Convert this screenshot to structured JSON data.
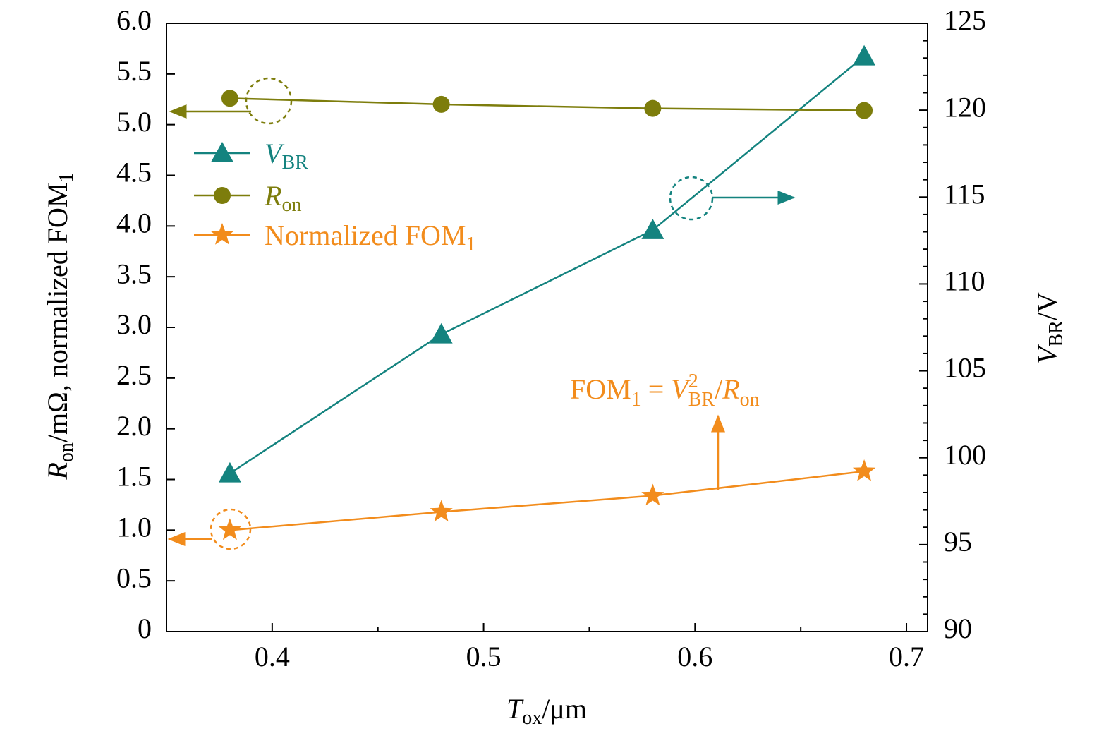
{
  "chart_data": {
    "type": "line",
    "xlabel": [
      "T",
      "ox",
      "/μm"
    ],
    "ylabel": [
      "R",
      "on",
      "/mΩ, normalized FOM",
      "1"
    ],
    "y2label": [
      "V",
      "BR",
      "/V"
    ],
    "annotation": [
      "FOM",
      "1",
      " = ",
      "V",
      "2",
      "BR",
      "/",
      "R",
      "on"
    ],
    "x": [
      0.38,
      0.48,
      0.58,
      0.68
    ],
    "xlim": [
      0.35,
      0.71
    ],
    "xticks": [
      0.4,
      0.5,
      0.6,
      0.7
    ],
    "xminor_ticks": [
      0.45,
      0.55,
      0.65
    ],
    "ylim": [
      0,
      6
    ],
    "yticks": [
      0,
      0.5,
      {
        "value": 1,
        "label": "1.0"
      },
      1.5,
      {
        "value": 2,
        "label": "2.0"
      },
      2.5,
      {
        "value": 3,
        "label": "3.0"
      },
      3.5,
      {
        "value": 4,
        "label": "4.0"
      },
      4.5,
      {
        "value": 5,
        "label": "5.0"
      },
      5.5,
      {
        "value": 6,
        "label": "6.0"
      }
    ],
    "y2lim": [
      90,
      125
    ],
    "y2ticks": [
      90,
      95,
      100,
      105,
      110,
      115,
      120,
      125
    ],
    "y2minor_ticks": [
      91,
      92,
      93,
      94,
      96,
      97,
      98,
      99,
      101,
      102,
      103,
      104,
      106,
      107,
      108,
      109,
      111,
      112,
      113,
      114,
      116,
      117,
      118,
      119,
      121,
      122,
      123,
      124
    ],
    "series": [
      {
        "name": [
          "V",
          "BR"
        ],
        "color": "#14837f",
        "marker": "triangle",
        "axis": "y2",
        "values": [
          99.1,
          107.1,
          113.1,
          123.1
        ]
      },
      {
        "name": [
          "R",
          "on"
        ],
        "color": "#7d7d0c",
        "marker": "circle",
        "values": [
          5.26,
          5.2,
          5.16,
          5.14
        ]
      },
      {
        "name": [
          "Normalized FOM",
          "1"
        ],
        "color": "#f28c1c",
        "marker": "star",
        "values": [
          1.0,
          1.18,
          1.34,
          1.58
        ]
      }
    ]
  }
}
